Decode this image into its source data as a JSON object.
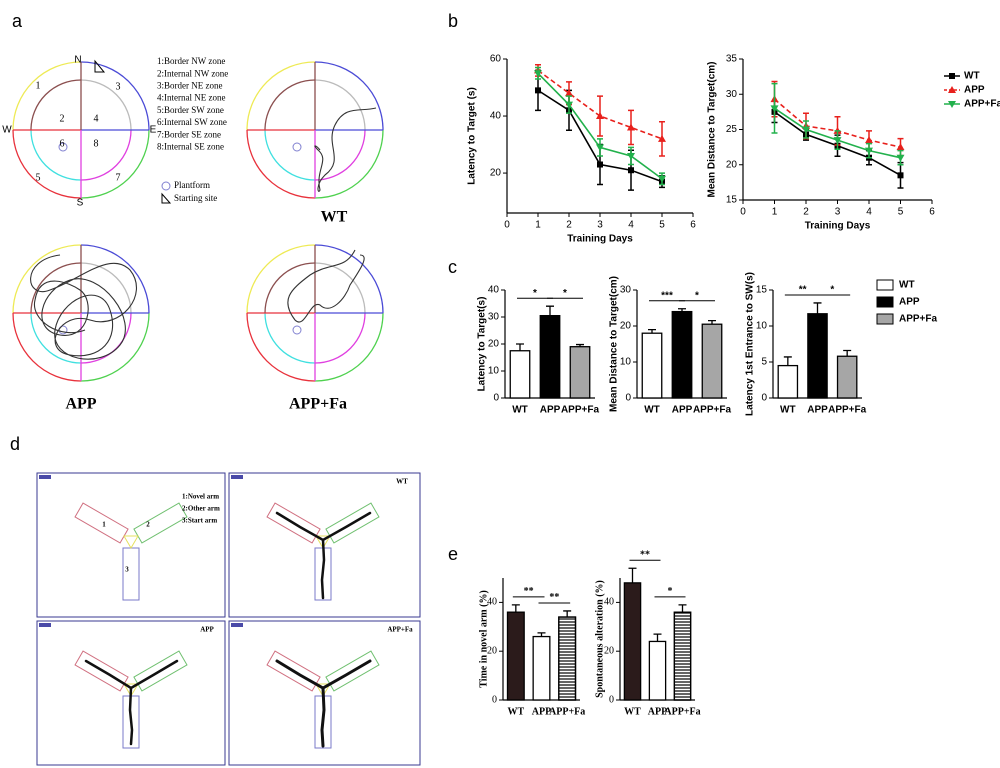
{
  "panel_labels": [
    "a",
    "b",
    "c",
    "d",
    "e"
  ],
  "water_maze": {
    "compass": [
      "N",
      "E",
      "S",
      "W"
    ],
    "zone_numbers": [
      "1",
      "2",
      "3",
      "4",
      "5",
      "6",
      "7",
      "8"
    ],
    "zone_legend": [
      "1:Border NW zone",
      "2:Internal NW zone",
      "3:Border NE zone",
      "4:Internal NE zone",
      "5:Border SW zone",
      "6:Internal SW zone",
      "7:Border SE zone",
      "8:Internal SE zone"
    ],
    "platform_label": "Plantform",
    "start_label": "Starting site",
    "groups": [
      "WT",
      "APP",
      "APP+Fa"
    ]
  },
  "y_maze": {
    "arm_numbers": [
      "1",
      "2",
      "3"
    ],
    "arm_legend": [
      "1:Novel arm",
      "2:Other arm",
      "3:Start arm"
    ],
    "groups": [
      "WT",
      "APP",
      "APP+Fa"
    ]
  },
  "chart_data": [
    {
      "type": "line",
      "xlabel": "Training Days",
      "ylabel": "Latency to Target (s)",
      "x": [
        1,
        2,
        3,
        4,
        5
      ],
      "xlim": [
        0,
        6
      ],
      "xticks": [
        0,
        1,
        2,
        3,
        4,
        5,
        6
      ],
      "ylim": [
        6,
        60
      ],
      "yticks": [
        20,
        40,
        60
      ],
      "series": [
        {
          "color": "#000000",
          "marker": "square",
          "dashed": false,
          "values": [
            49,
            42,
            23,
            21,
            17
          ],
          "errors": [
            7,
            7,
            7,
            7,
            2
          ]
        },
        {
          "color": "#e8201c",
          "marker": "triangle",
          "dashed": true,
          "values": [
            56,
            48,
            40,
            36,
            32
          ],
          "errors": [
            2,
            4,
            7,
            6,
            6
          ]
        },
        {
          "color": "#22b14c",
          "marker": "triangle-down",
          "dashed": false,
          "values": [
            55,
            44,
            29,
            26,
            18
          ],
          "errors": [
            2,
            3,
            3,
            3,
            2
          ]
        }
      ]
    },
    {
      "type": "line",
      "xlabel": "Training Days",
      "ylabel": "Mean Distance to Target(cm)",
      "x": [
        1,
        2,
        3,
        4,
        5
      ],
      "xlim": [
        0,
        6
      ],
      "xticks": [
        0,
        1,
        2,
        3,
        4,
        5,
        6
      ],
      "ylim": [
        15,
        35
      ],
      "yticks": [
        15,
        20,
        25,
        30,
        35
      ],
      "legend": true,
      "series": [
        {
          "name": "WT",
          "color": "#000000",
          "marker": "square",
          "dashed": false,
          "values": [
            27.5,
            24.3,
            22.7,
            21,
            18.5
          ],
          "errors": [
            1.5,
            0.8,
            1.5,
            1,
            1.8
          ]
        },
        {
          "name": "APP",
          "color": "#e8201c",
          "marker": "triangle",
          "dashed": true,
          "values": [
            29.3,
            25.5,
            24.8,
            23.5,
            22.5
          ],
          "errors": [
            2.5,
            1.8,
            2,
            1.3,
            1.2
          ]
        },
        {
          "name": "APP+Fa",
          "color": "#22b14c",
          "marker": "triangle-down",
          "dashed": false,
          "values": [
            28,
            25,
            23.5,
            22,
            21
          ],
          "errors": [
            3.5,
            1.2,
            1.3,
            1,
            1
          ]
        }
      ]
    },
    {
      "type": "bar",
      "ylabel": "Latency to Target(s)",
      "categories": [
        "WT",
        "APP",
        "APP+Fa"
      ],
      "values": [
        17.5,
        30.5,
        19
      ],
      "errors": [
        2.5,
        3.5,
        0.8
      ],
      "colors": [
        "#ffffff",
        "#000000",
        "#a6a6a6"
      ],
      "ylim": [
        0,
        40
      ],
      "yticks": [
        0,
        10,
        20,
        30,
        40
      ],
      "significance": [
        "*",
        "*"
      ]
    },
    {
      "type": "bar",
      "ylabel": "Mean Distance to Target(cm)",
      "categories": [
        "WT",
        "APP",
        "APP+Fa"
      ],
      "values": [
        18,
        24,
        20.5
      ],
      "errors": [
        1,
        0.8,
        1
      ],
      "colors": [
        "#ffffff",
        "#000000",
        "#a6a6a6"
      ],
      "ylim": [
        0,
        30
      ],
      "yticks": [
        0,
        10,
        20,
        30
      ],
      "significance": [
        "***",
        "*"
      ]
    },
    {
      "type": "bar",
      "ylabel": "Latency 1st Entrance to SW(s)",
      "categories": [
        "WT",
        "APP",
        "APP+Fa"
      ],
      "values": [
        4.5,
        11.7,
        5.8
      ],
      "errors": [
        1.2,
        1.5,
        0.8
      ],
      "colors": [
        "#ffffff",
        "#000000",
        "#a6a6a6"
      ],
      "ylim": [
        0,
        15
      ],
      "yticks": [
        0,
        5,
        10,
        15
      ],
      "significance": [
        "**",
        "*"
      ],
      "legend": true
    },
    {
      "type": "bar",
      "ylabel": "Time in novel arm (%)",
      "categories": [
        "WT",
        "APP",
        "APP+Fa"
      ],
      "values": [
        36,
        26,
        34
      ],
      "errors": [
        3,
        1.5,
        2.5
      ],
      "colors": [
        "#2b1b1b",
        "#ffffff",
        "#ffffff"
      ],
      "hatch": [
        false,
        false,
        true
      ],
      "ylim": [
        0,
        50
      ],
      "yticks": [
        0,
        20,
        40
      ],
      "significance": [
        "**",
        "**"
      ]
    },
    {
      "type": "bar",
      "ylabel": "Spontaneous alteration (%)",
      "categories": [
        "WT",
        "APP",
        "APP+Fa"
      ],
      "values": [
        48,
        24,
        36
      ],
      "errors": [
        6,
        3,
        3
      ],
      "colors": [
        "#2b1b1b",
        "#ffffff",
        "#ffffff"
      ],
      "hatch": [
        false,
        false,
        true
      ],
      "ylim": [
        0,
        50
      ],
      "yticks": [
        0,
        20,
        40
      ],
      "significance": [
        "**",
        "*"
      ]
    }
  ]
}
